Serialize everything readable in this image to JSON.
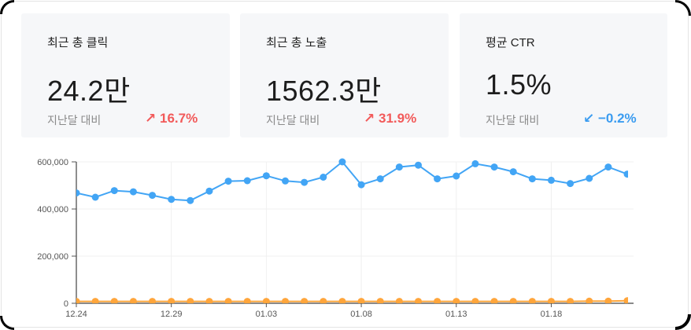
{
  "cards": [
    {
      "title": "최근 총 클릭",
      "value": "24.2만",
      "compare_label": "지난달 대비",
      "delta_icon": "arrow-up-right-icon",
      "delta_arrow": "↗",
      "delta": "16.7%",
      "trend": "up"
    },
    {
      "title": "최근 총 노출",
      "value": "1562.3만",
      "compare_label": "지난달 대비",
      "delta_icon": "arrow-up-right-icon",
      "delta_arrow": "↗",
      "delta": "31.9%",
      "trend": "up"
    },
    {
      "title": "평균 CTR",
      "value": "1.5%",
      "compare_label": "지난달 대비",
      "delta_icon": "arrow-down-left-icon",
      "delta_arrow": "↙",
      "delta": "−0.2%",
      "trend": "down"
    }
  ],
  "colors": {
    "up": "#f25a5a",
    "down": "#3b9cf0",
    "series_impressions": "#42a5f5",
    "series_clicks": "#ffa53b",
    "card_bg": "#f6f7f9"
  },
  "chart_data": {
    "type": "line",
    "title": "",
    "xlabel": "",
    "ylabel": "",
    "ylim": [
      0,
      600000
    ],
    "yticks": [
      "0",
      "200,000",
      "400,000",
      "600,000"
    ],
    "xticks": [
      "12.24",
      "12.29",
      "01.03",
      "01.08",
      "01.13",
      "01.18"
    ],
    "grid": true,
    "legend": "none",
    "x": [
      "12.24",
      "12.25",
      "12.26",
      "12.27",
      "12.28",
      "12.29",
      "12.30",
      "12.31",
      "01.01",
      "01.02",
      "01.03",
      "01.04",
      "01.05",
      "01.06",
      "01.07",
      "01.08",
      "01.09",
      "01.10",
      "01.11",
      "01.12",
      "01.13",
      "01.14",
      "01.15",
      "01.16",
      "01.17",
      "01.18",
      "01.19",
      "01.20",
      "01.21",
      "01.22"
    ],
    "series": [
      {
        "name": "노출",
        "color": "#42a5f5",
        "values": [
          468000,
          450000,
          478000,
          473000,
          458000,
          441000,
          436000,
          476000,
          518000,
          520000,
          541000,
          519000,
          513000,
          535000,
          600000,
          503000,
          528000,
          578000,
          586000,
          528000,
          540000,
          592000,
          578000,
          558000,
          528000,
          522000,
          508000,
          530000,
          578000,
          548000
        ]
      },
      {
        "name": "클릭",
        "color": "#ffa53b",
        "values": [
          8000,
          8000,
          8000,
          8000,
          8000,
          8000,
          8000,
          8000,
          8000,
          8000,
          8000,
          8000,
          8000,
          8000,
          8000,
          8000,
          8000,
          8000,
          8000,
          8000,
          8000,
          8000,
          8000,
          8000,
          8000,
          8000,
          8000,
          9000,
          9000,
          11000
        ]
      }
    ]
  }
}
